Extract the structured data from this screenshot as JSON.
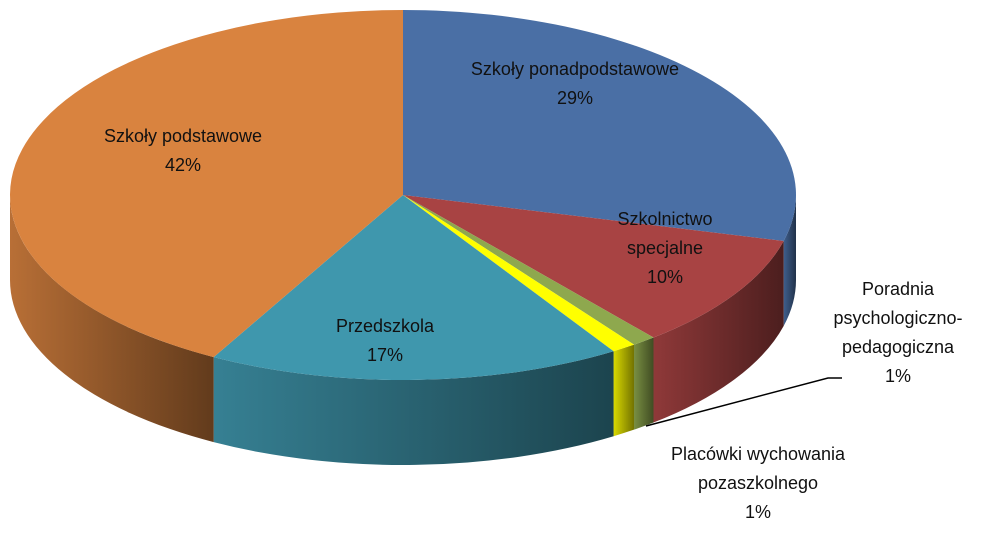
{
  "chart_data": {
    "type": "pie",
    "categories": [
      "Szkoły ponadpodstawowe",
      "Szkolnictwo specjalne",
      "Poradnia psychologiczno-pedagogiczna",
      "Placówki wychowania pozaszkolnego",
      "Przedszkola",
      "Szkoły podstawowe"
    ],
    "values": [
      29,
      10,
      1,
      1,
      17,
      42
    ],
    "value_labels": [
      "29%",
      "10%",
      "1%",
      "1%",
      "17%",
      "42%"
    ],
    "colors": [
      "#4a6fa5",
      "#a84343",
      "#8ea84e",
      "#ffff00",
      "#3f97ad",
      "#d9833f"
    ]
  }
}
